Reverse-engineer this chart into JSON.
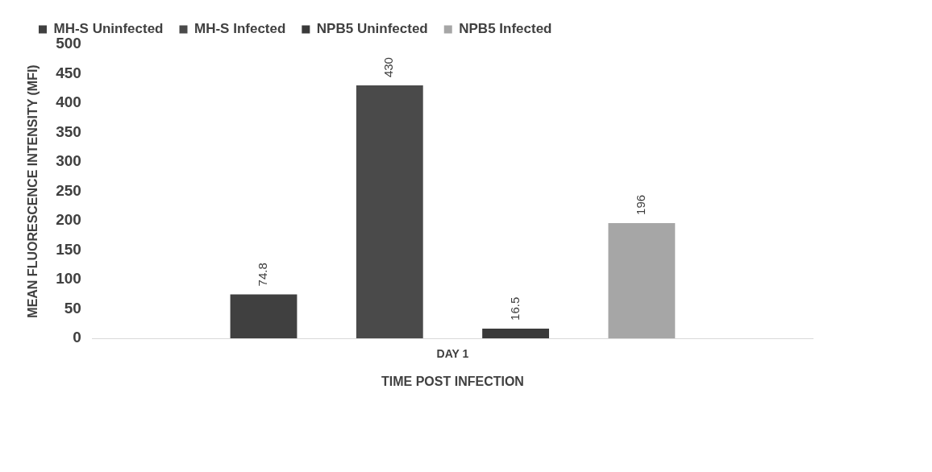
{
  "chart_data": {
    "type": "bar",
    "xlabel": "TIME POST INFECTION",
    "ylabel": "MEAN FLUORESCENCE INTENSITY (MFI)",
    "categories": [
      "DAY 1"
    ],
    "series": [
      {
        "name": "MH-S Uninfected",
        "color": "#404040",
        "values": [
          74.8
        ]
      },
      {
        "name": "MH-S Infected",
        "color": "#4a4a4a",
        "values": [
          430
        ]
      },
      {
        "name": "NPB5 Uninfected",
        "color": "#3a3a3a",
        "values": [
          16.5
        ]
      },
      {
        "name": "NPB5 Infected",
        "color": "#a6a6a6",
        "values": [
          196
        ]
      }
    ],
    "ylim": [
      0,
      500
    ],
    "yticks": [
      0,
      50,
      100,
      150,
      200,
      250,
      300,
      350,
      400,
      450,
      500
    ],
    "grid": false,
    "legend": "top",
    "data_labels": true
  }
}
